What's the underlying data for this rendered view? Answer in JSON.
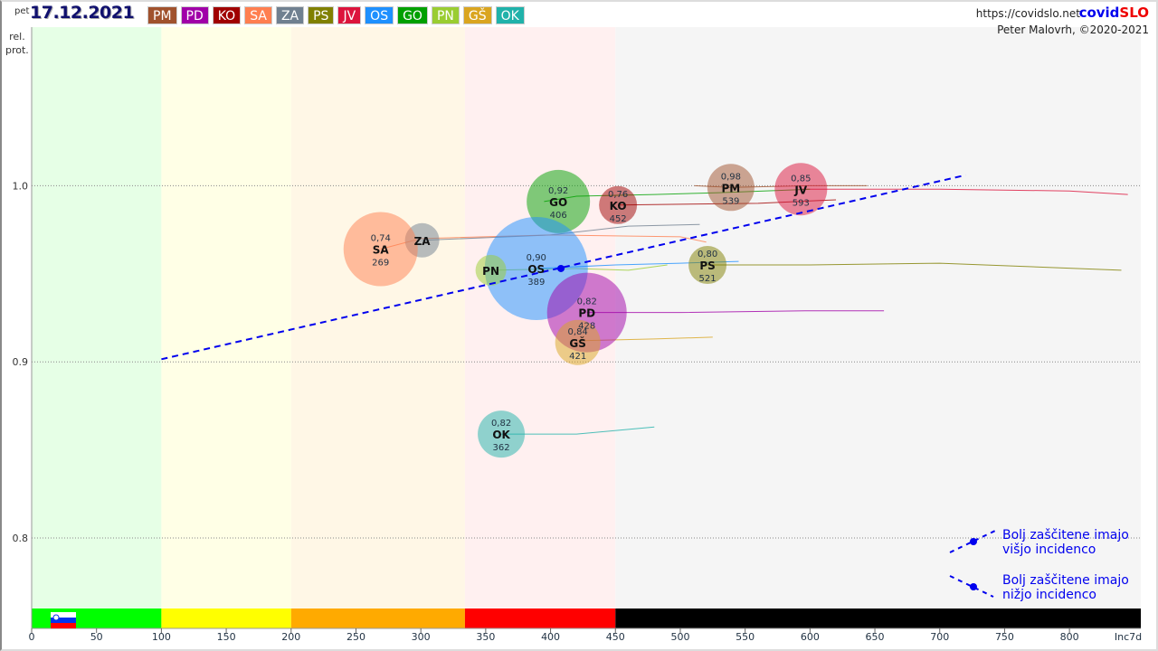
{
  "header": {
    "day": "pet",
    "date": "17.12.2021",
    "url": "https://covidslo.net",
    "brand_a": "covid",
    "brand_b": "SLO",
    "author": "Peter Malovrh, ©2020-2021"
  },
  "regions": [
    {
      "code": "PM",
      "color": "#a0522d"
    },
    {
      "code": "PD",
      "color": "#a000a8"
    },
    {
      "code": "KO",
      "color": "#a00000"
    },
    {
      "code": "SA",
      "color": "#ff7f50"
    },
    {
      "code": "ZA",
      "color": "#708090"
    },
    {
      "code": "PS",
      "color": "#808000"
    },
    {
      "code": "JV",
      "color": "#dc143c"
    },
    {
      "code": "OS",
      "color": "#1e90ff"
    },
    {
      "code": "GO",
      "color": "#00a000"
    },
    {
      "code": "PN",
      "color": "#9acd32"
    },
    {
      "code": "GŠ",
      "color": "#daa520"
    },
    {
      "code": "OK",
      "color": "#20b2aa"
    }
  ],
  "legend": {
    "up_line1": "Bolj  zaščitene imajo",
    "up_line2": "višjo incidenco",
    "down_line1": "Bolj  zaščitene imajo",
    "down_line2": "nižjo incidenco"
  },
  "chart_data": {
    "type": "scatter",
    "ylabel_1": "rel.",
    "ylabel_2": "prot.",
    "xlabel": "Inc7d",
    "xlim": [
      0,
      855
    ],
    "ylim": [
      0.76,
      1.09
    ],
    "xticks": [
      0,
      50,
      100,
      150,
      200,
      250,
      300,
      350,
      400,
      450,
      500,
      550,
      600,
      650,
      700,
      750,
      800
    ],
    "yticks": [
      {
        "v": 0.8,
        "label": "0.8"
      },
      {
        "v": 0.9,
        "label": "0.9"
      },
      {
        "v": 1.0,
        "label": "1.0"
      }
    ],
    "bands": [
      {
        "from": 0,
        "to": 100,
        "bg": "#e6ffe6",
        "bar": "#00ff00"
      },
      {
        "from": 100,
        "to": 200,
        "bg": "#ffffe6",
        "bar": "#ffff00"
      },
      {
        "from": 200,
        "to": 334,
        "bg": "#fff7e6",
        "bar": "#ffaa00"
      },
      {
        "from": 334,
        "to": 450,
        "bg": "#fff0f0",
        "bar": "#ff0000"
      },
      {
        "from": 450,
        "to": 855,
        "bg": "#f5f5f5",
        "bar": "#000000"
      }
    ],
    "trend": {
      "x1": 100,
      "y1": 0.9015,
      "x2": 720,
      "y2": 1.006,
      "mean_x": 408,
      "mean_y": 0.953
    },
    "points": [
      {
        "code": "PM",
        "x": 539,
        "y": 0.999,
        "val": "0,98",
        "inc": "539",
        "weight": 26,
        "color": "#a0522d",
        "trail": [
          [
            511,
            1.0
          ],
          [
            539,
            0.999
          ],
          [
            600,
            1.0
          ],
          [
            644,
            1.0
          ]
        ]
      },
      {
        "code": "JV",
        "x": 593,
        "y": 0.998,
        "val": "0,85",
        "inc": "593",
        "weight": 29,
        "color": "#dc143c",
        "trail": [
          [
            593,
            0.998
          ],
          [
            700,
            0.998
          ],
          [
            800,
            0.997
          ],
          [
            845,
            0.995
          ]
        ]
      },
      {
        "code": "GO",
        "x": 406,
        "y": 0.991,
        "val": "0,92",
        "inc": "406",
        "weight": 35,
        "color": "#00a000",
        "trail": [
          [
            395,
            0.991
          ],
          [
            420,
            0.994
          ],
          [
            480,
            0.995
          ],
          [
            530,
            0.996
          ],
          [
            600,
            0.998
          ]
        ]
      },
      {
        "code": "KO",
        "x": 452,
        "y": 0.989,
        "val": "0,76",
        "inc": "452",
        "weight": 21,
        "color": "#a00000",
        "trail": [
          [
            452,
            0.989
          ],
          [
            560,
            0.99
          ],
          [
            620,
            0.992
          ]
        ]
      },
      {
        "code": "ZA",
        "x": 301,
        "y": 0.969,
        "val": "",
        "inc": "",
        "weight": 19,
        "color": "#708090",
        "trail": [
          [
            301,
            0.969
          ],
          [
            400,
            0.972
          ],
          [
            460,
            0.977
          ],
          [
            515,
            0.978
          ]
        ]
      },
      {
        "code": "SA",
        "x": 269,
        "y": 0.964,
        "val": "0,74",
        "inc": "269",
        "weight": 41,
        "color": "#ff7f50",
        "trail": [
          [
            269,
            0.964
          ],
          [
            300,
            0.97
          ],
          [
            400,
            0.972
          ],
          [
            500,
            0.971
          ],
          [
            520,
            0.968
          ]
        ]
      },
      {
        "code": "OS",
        "x": 389,
        "y": 0.953,
        "val": "0,90",
        "inc": "389",
        "weight": 57,
        "color": "#1e90ff",
        "trail": [
          [
            389,
            0.953
          ],
          [
            450,
            0.955
          ],
          [
            500,
            0.956
          ],
          [
            545,
            0.957
          ]
        ]
      },
      {
        "code": "PN",
        "x": 354,
        "y": 0.952,
        "val": "",
        "inc": "",
        "weight": 17,
        "color": "#9acd32",
        "trail": [
          [
            354,
            0.952
          ],
          [
            420,
            0.953
          ],
          [
            460,
            0.952
          ],
          [
            490,
            0.955
          ]
        ]
      },
      {
        "code": "PS",
        "x": 521,
        "y": 0.955,
        "val": "0,80",
        "inc": "521",
        "weight": 21,
        "color": "#808000",
        "trail": [
          [
            521,
            0.955
          ],
          [
            600,
            0.955
          ],
          [
            700,
            0.956
          ],
          [
            840,
            0.952
          ]
        ]
      },
      {
        "code": "PD",
        "x": 428,
        "y": 0.928,
        "val": "0,82",
        "inc": "428",
        "weight": 44,
        "color": "#a000a8",
        "trail": [
          [
            428,
            0.928
          ],
          [
            500,
            0.928
          ],
          [
            600,
            0.929
          ],
          [
            657,
            0.929
          ]
        ]
      },
      {
        "code": "GŠ",
        "x": 421,
        "y": 0.911,
        "val": "0,84",
        "inc": "421",
        "weight": 25,
        "color": "#daa520",
        "trail": [
          [
            421,
            0.912
          ],
          [
            480,
            0.913
          ],
          [
            525,
            0.914
          ]
        ]
      },
      {
        "code": "OK",
        "x": 362,
        "y": 0.859,
        "val": "0,82",
        "inc": "362",
        "weight": 26,
        "color": "#20b2aa",
        "trail": [
          [
            362,
            0.859
          ],
          [
            420,
            0.859
          ],
          [
            480,
            0.863
          ]
        ]
      }
    ]
  }
}
